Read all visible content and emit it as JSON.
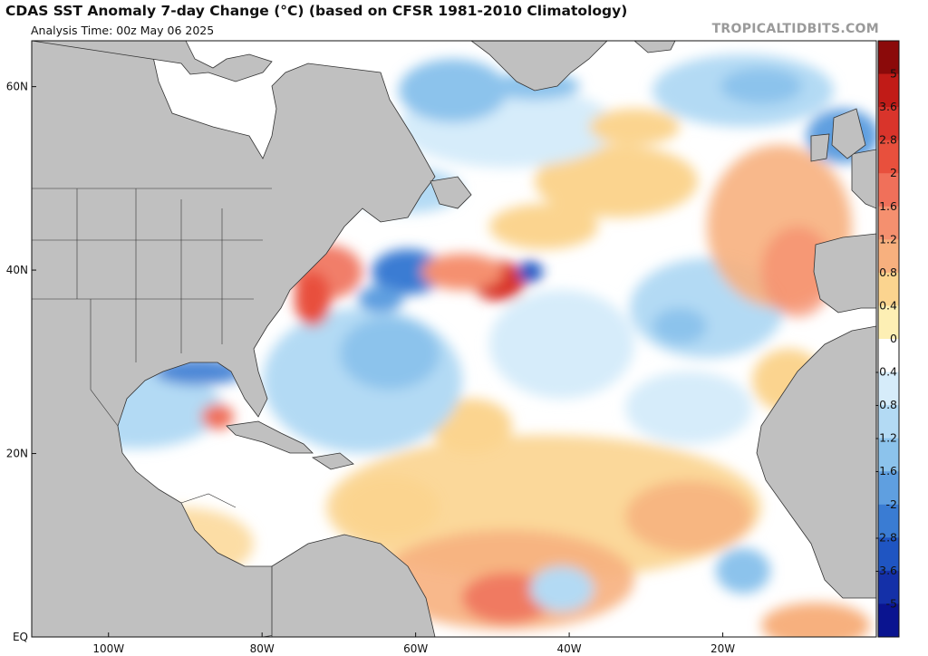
{
  "header": {
    "title": "CDAS SST Anomaly 7-day Change (°C) (based on CFSR 1981-2010 Climatology)",
    "subtitle": "Analysis Time: 00z May 06 2025",
    "watermark": "TROPICALTIDBITS.COM"
  },
  "map": {
    "lon_range": [
      -110,
      0
    ],
    "lat_range": [
      0,
      65
    ],
    "lat_ticks": [
      {
        "value": 60,
        "label": "60N"
      },
      {
        "value": 40,
        "label": "40N"
      },
      {
        "value": 20,
        "label": "20N"
      },
      {
        "value": 0,
        "label": "EQ"
      }
    ],
    "lon_ticks": [
      {
        "value": -100,
        "label": "100W"
      },
      {
        "value": -80,
        "label": "80W"
      },
      {
        "value": -60,
        "label": "60W"
      },
      {
        "value": -40,
        "label": "40W"
      },
      {
        "value": -20,
        "label": "20W"
      }
    ],
    "land_color": "#c0c0c0",
    "ocean_neutral_color": "#ffffff"
  },
  "colorbar": {
    "labels": [
      "5",
      "3.6",
      "2.8",
      "2",
      "1.6",
      "1.2",
      "0.8",
      "0.4",
      "0",
      "-0.4",
      "-0.8",
      "-1.2",
      "-1.6",
      "-2",
      "-2.8",
      "-3.6",
      "-5"
    ],
    "colors": [
      "#8b0a0a",
      "#c11b17",
      "#d9342b",
      "#e8503d",
      "#f0705a",
      "#f5906f",
      "#f7b07e",
      "#fbd48f",
      "#fdefb4",
      "#ffffff",
      "#d6ecfa",
      "#b3daf4",
      "#8cc3ec",
      "#5f9fe0",
      "#3a7cd3",
      "#1f55c2",
      "#1430a8",
      "#0a1490"
    ]
  }
}
